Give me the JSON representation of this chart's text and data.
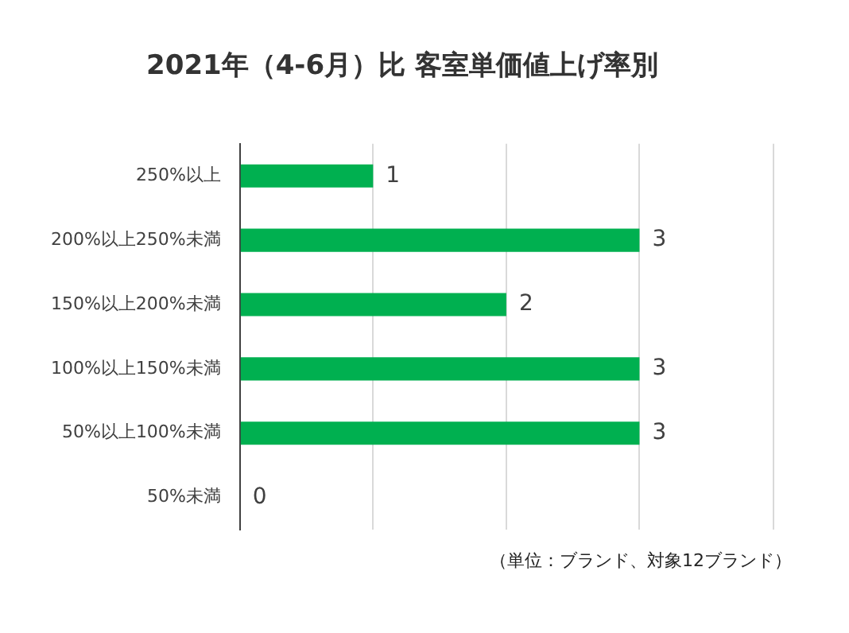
{
  "chart_data": {
    "type": "bar",
    "orientation": "horizontal",
    "title": "2021年（4-6月）比 客室単価値上げ率別",
    "categories": [
      "250%以上",
      "200%以上250%未満",
      "150%以上200%未満",
      "100%以上150%未満",
      "50%以上100%未満",
      "50%未満"
    ],
    "values": [
      1,
      3,
      2,
      3,
      3,
      0
    ],
    "color": "#00b050",
    "xlim": [
      0,
      4
    ],
    "xticks": [
      {
        "value": 0,
        "label": null
      },
      {
        "value": 1,
        "label": null
      },
      {
        "value": 2,
        "label": null
      },
      {
        "value": 3,
        "label": null
      }
    ],
    "grid": "x",
    "tick_labels": "y",
    "data_labels": true,
    "annotations": [
      "（単位：ブランド、対象12ブランド）"
    ]
  }
}
